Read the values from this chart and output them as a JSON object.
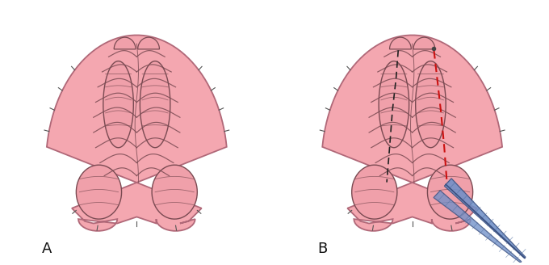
{
  "bg_color": "#ffffff",
  "palate_fill": "#f4a7b0",
  "palate_edge": "#b06878",
  "rugae_color": "#7a4a52",
  "inner_lobe_fill": "#f0a0aa",
  "label_A": "A",
  "label_B": "B",
  "label_fontsize": 13,
  "red_dashed_color": "#cc1111",
  "black_dashed_color": "#222222",
  "scissor_body_color": "#7090c8",
  "scissor_edge_color": "#3a5080",
  "scissor_line_color": "#5070a0",
  "spine_color": "#555555"
}
